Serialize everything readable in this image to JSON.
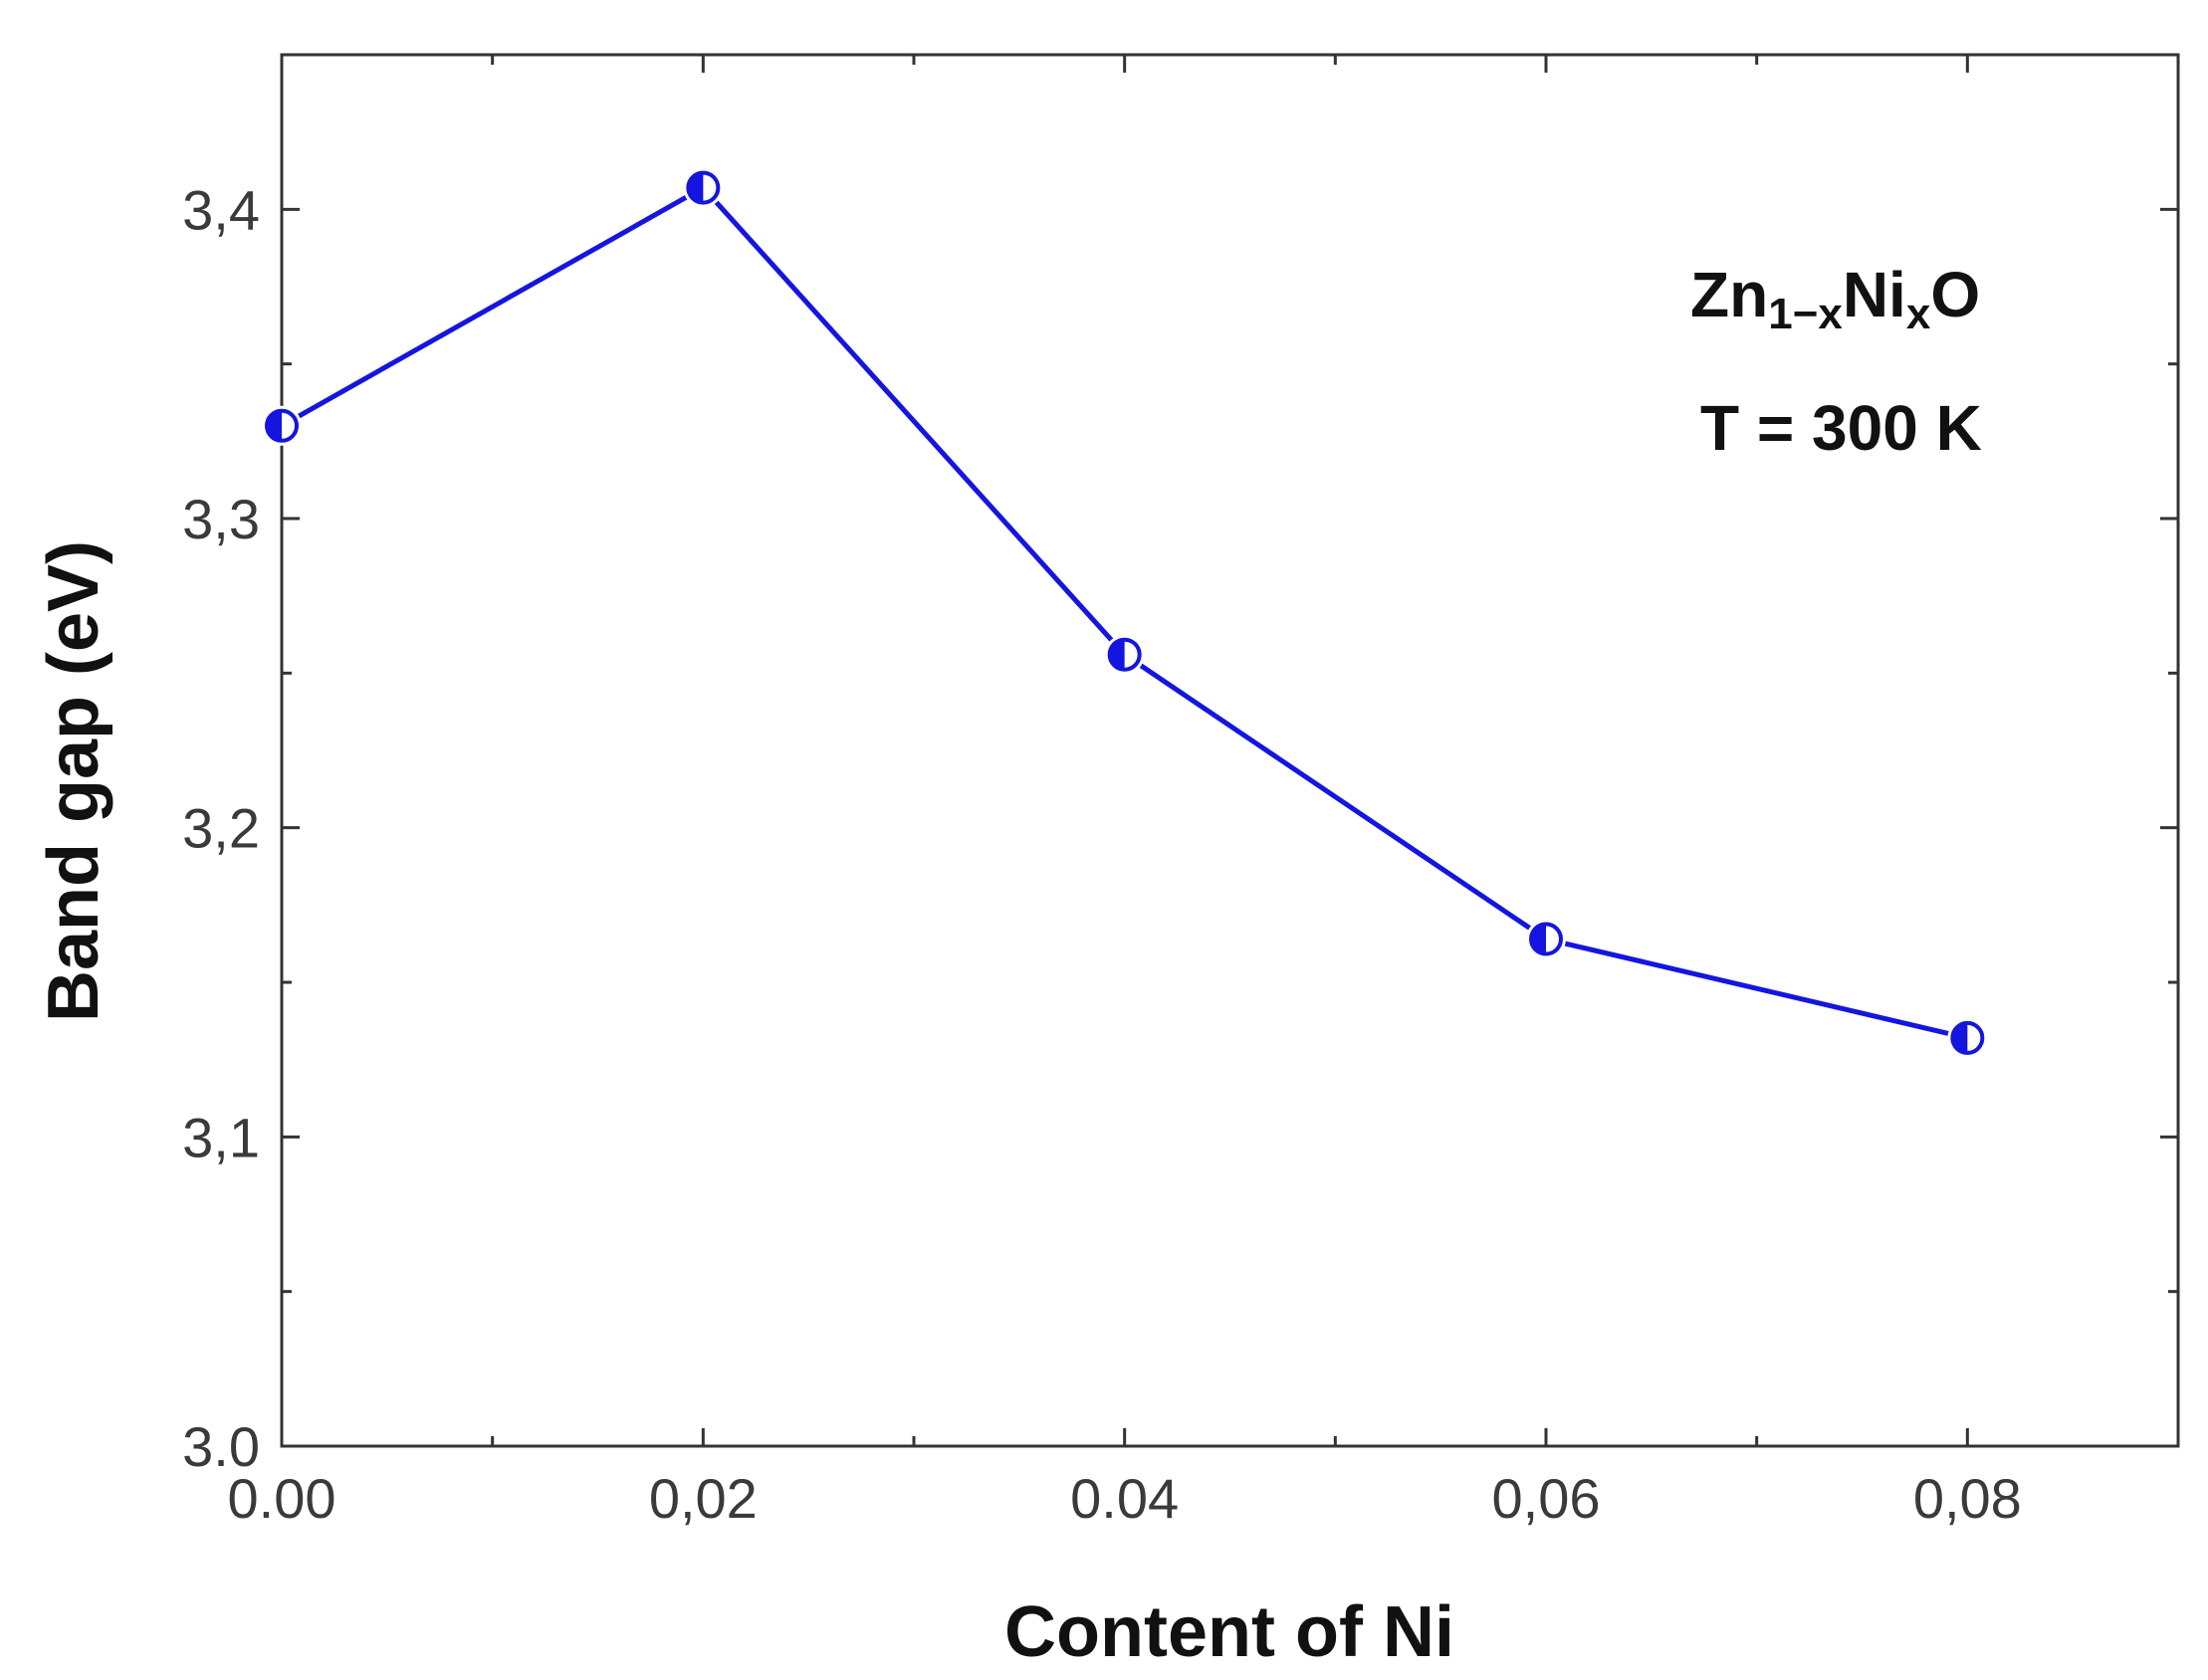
{
  "chart_data": {
    "type": "line",
    "title": "",
    "xlabel": "Content of Ni",
    "ylabel": "Band gap (eV)",
    "xlim": [
      0.0,
      0.09
    ],
    "ylim": [
      3.0,
      3.45
    ],
    "x_ticks": [
      "0.00",
      "0,02",
      "0.04",
      "0,06",
      "0,08"
    ],
    "x_tick_values": [
      0.0,
      0.02,
      0.04,
      0.06,
      0.08
    ],
    "y_ticks": [
      "3.0",
      "3,1",
      "3,2",
      "3,3",
      "3,4"
    ],
    "y_tick_values": [
      3.0,
      3.1,
      3.2,
      3.3,
      3.4
    ],
    "grid": false,
    "series": [
      {
        "x": [
          0.0,
          0.02,
          0.04,
          0.06,
          0.08
        ],
        "values": [
          3.33,
          3.407,
          3.256,
          3.164,
          3.132
        ],
        "color": "#1515e0",
        "marker": "half-filled-circle"
      }
    ],
    "annotations": {
      "formula_base": "Zn",
      "formula_sub1": "1−x",
      "formula_mid": "Ni",
      "formula_sub2": "x",
      "formula_end": "O",
      "temperature": "T = 300 K"
    }
  }
}
